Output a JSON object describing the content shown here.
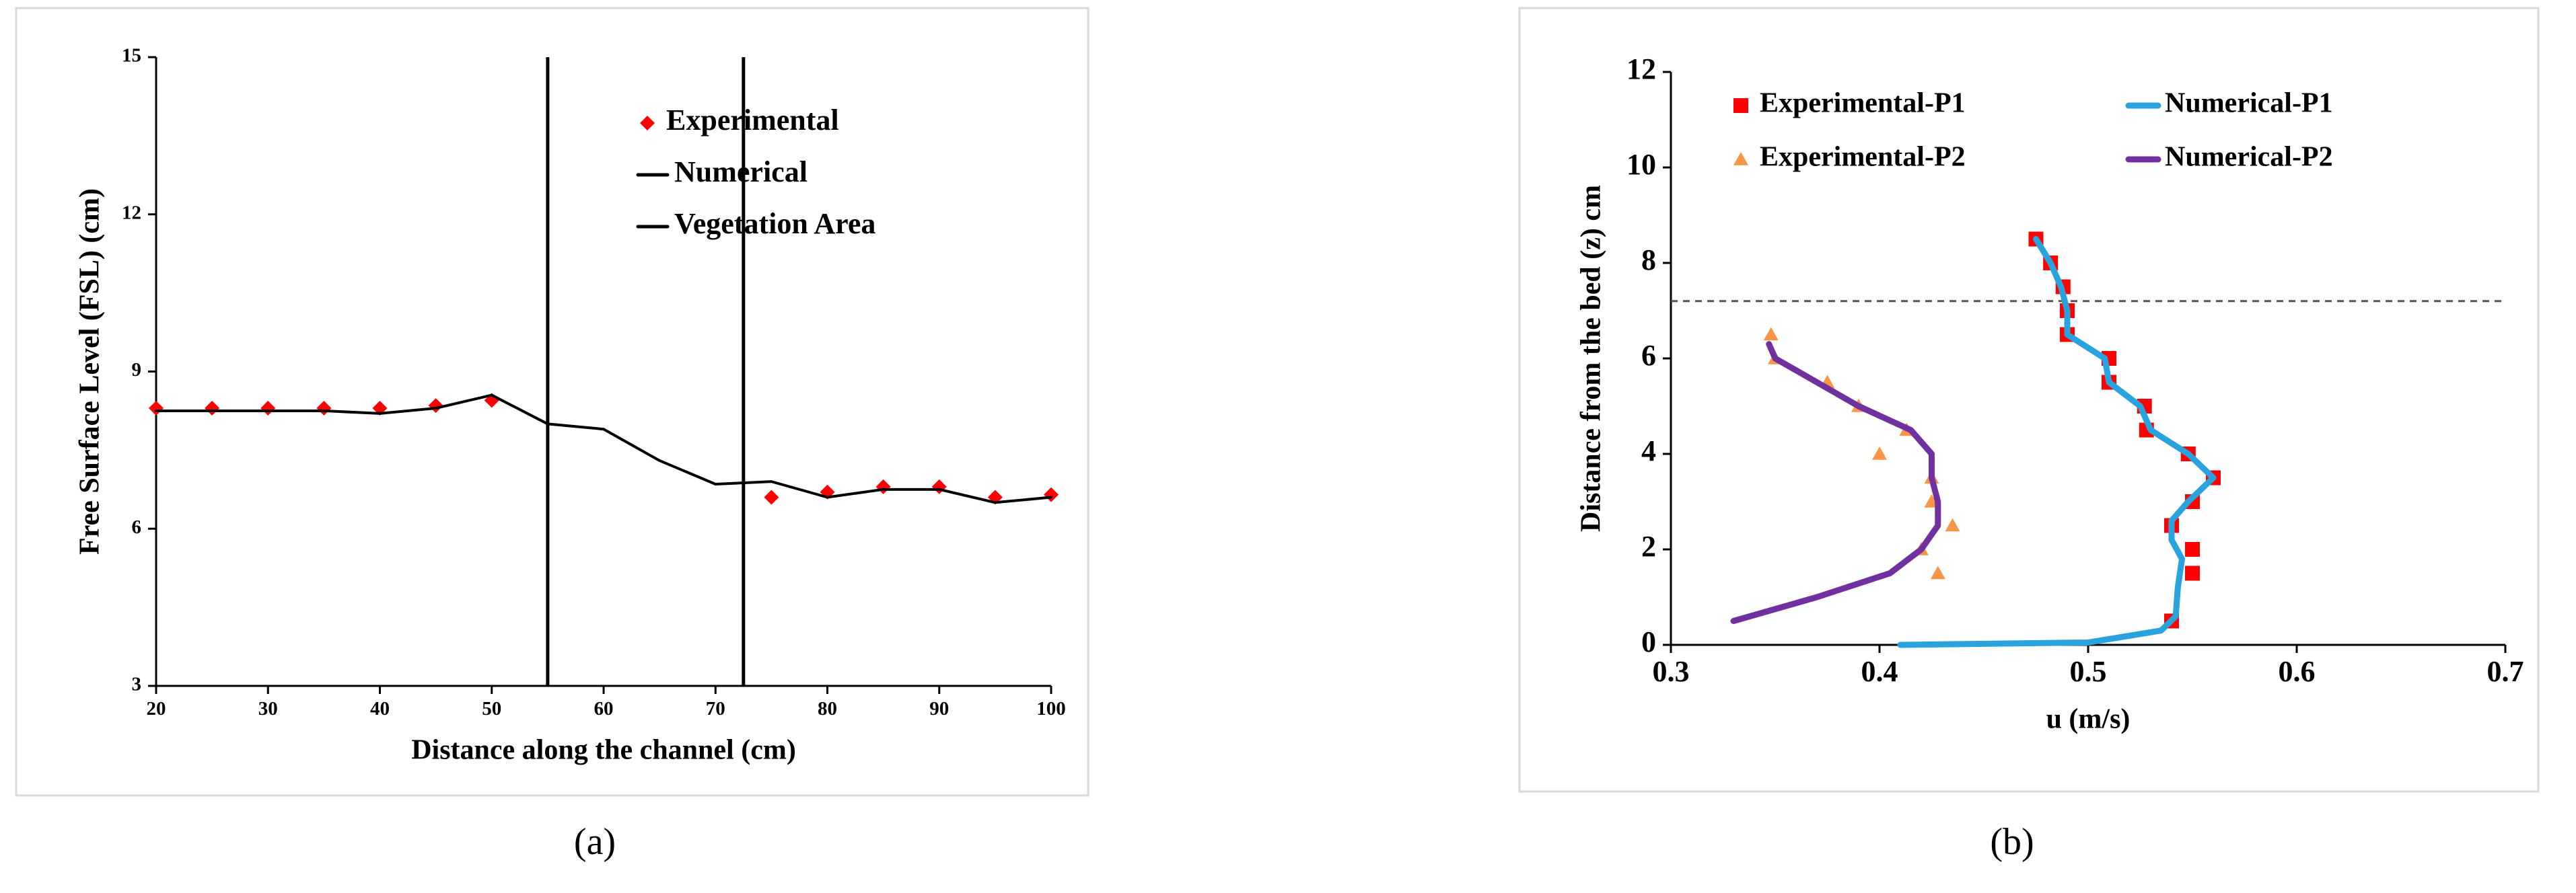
{
  "chart_data": [
    {
      "type": "scatter-line",
      "xlabel": "Distance along the channel (cm)",
      "ylabel": "Free Surface Level (FSL) (cm)",
      "caption": "(a)",
      "xlim": [
        20,
        100
      ],
      "xticks": [
        20,
        30,
        40,
        50,
        60,
        70,
        80,
        90,
        100
      ],
      "ylim": [
        3,
        15
      ],
      "yticks": [
        3,
        6,
        9,
        12,
        15
      ],
      "legend": "upper right",
      "legend_columns": 1,
      "series": [
        {
          "name": "Experimental",
          "color": "#ff0000",
          "style": "diamond",
          "x": [
            20,
            25,
            30,
            35,
            40,
            45,
            50,
            75,
            80,
            85,
            90,
            95,
            100
          ],
          "values": [
            8.3,
            8.3,
            8.3,
            8.3,
            8.3,
            8.35,
            8.45,
            6.6,
            6.7,
            6.8,
            6.8,
            6.6,
            6.65
          ]
        },
        {
          "name": "Numerical",
          "color": "#000000",
          "style": "line",
          "x": [
            20,
            25,
            30,
            35,
            40,
            45,
            50,
            55,
            60,
            65,
            70,
            75,
            80,
            85,
            90,
            95,
            100
          ],
          "values": [
            8.25,
            8.25,
            8.25,
            8.25,
            8.2,
            8.3,
            8.55,
            8.0,
            7.9,
            7.3,
            6.85,
            6.9,
            6.6,
            6.75,
            6.75,
            6.5,
            6.6
          ]
        },
        {
          "name": "Vegetation Area",
          "color": "#000000",
          "style": "vline",
          "x": [
            55,
            72.5
          ]
        }
      ]
    },
    {
      "type": "scatter-line",
      "xlabel": "u (m/s)",
      "ylabel": "Distance from the bed (z) cm",
      "caption": "(b)",
      "xlim": [
        0.3,
        0.7
      ],
      "xticks": [
        0.3,
        0.4,
        0.5,
        0.6,
        0.7
      ],
      "ylim": [
        0,
        12
      ],
      "yticks": [
        0,
        2,
        4,
        6,
        8,
        10,
        12
      ],
      "hline": 7.2,
      "legend": "upper left",
      "legend_columns": 2,
      "series": [
        {
          "name": "Experimental-P1",
          "color": "#ff0000",
          "style": "square",
          "x": [
            0.475,
            0.482,
            0.488,
            0.49,
            0.49,
            0.51,
            0.51,
            0.527,
            0.528,
            0.548,
            0.56,
            0.55,
            0.54,
            0.55,
            0.55,
            0.54
          ],
          "values": [
            8.5,
            8,
            7.5,
            7,
            6.5,
            6,
            5.5,
            5,
            4.5,
            4,
            3.5,
            3,
            2.5,
            2,
            1.5,
            0.5
          ]
        },
        {
          "name": "Numerical-P1",
          "color": "#29a3dd",
          "style": "line",
          "x": [
            0.41,
            0.5,
            0.535,
            0.542,
            0.543,
            0.545,
            0.54,
            0.54,
            0.548,
            0.56,
            0.548,
            0.53,
            0.525,
            0.51,
            0.508,
            0.49,
            0.49,
            0.487,
            0.482,
            0.475
          ],
          "values": [
            0,
            0.05,
            0.3,
            0.6,
            1.2,
            1.8,
            2.2,
            2.6,
            3,
            3.5,
            4,
            4.5,
            5,
            5.5,
            6,
            6.5,
            7,
            7.5,
            8,
            8.5
          ]
        },
        {
          "name": "Experimental-P2",
          "color": "#f79646",
          "style": "triangle",
          "x": [
            0.348,
            0.35,
            0.375,
            0.39,
            0.413,
            0.4,
            0.425,
            0.425,
            0.435,
            0.42,
            0.428
          ],
          "values": [
            6.5,
            6,
            5.5,
            5,
            4.5,
            4,
            3.5,
            3,
            2.5,
            2,
            1.5
          ]
        },
        {
          "name": "Numerical-P2",
          "color": "#7030a0",
          "style": "line",
          "x": [
            0.33,
            0.37,
            0.405,
            0.42,
            0.428,
            0.428,
            0.425,
            0.425,
            0.415,
            0.39,
            0.37,
            0.35,
            0.347
          ],
          "values": [
            0.5,
            1,
            1.5,
            2,
            2.5,
            3,
            3.5,
            4,
            4.5,
            5,
            5.5,
            6,
            6.3
          ]
        }
      ]
    }
  ]
}
